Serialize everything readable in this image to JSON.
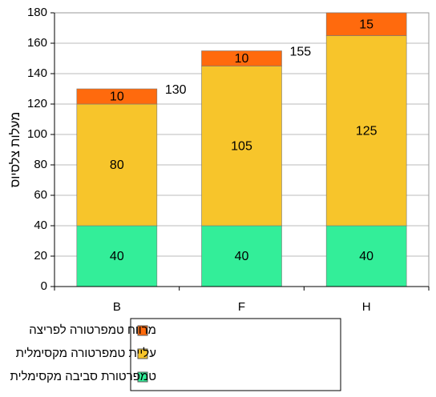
{
  "chart_data": {
    "type": "stacked-bar",
    "y_label": "מעלות צלסיוס",
    "categories": [
      "B",
      "F",
      "H"
    ],
    "series": [
      {
        "name": "טמפרטורת סביבה מקסימלית",
        "color": "#33ee99",
        "values": [
          40,
          40,
          40
        ]
      },
      {
        "name": "עליית טמפרטורה מקסימלית",
        "color": "#f7c52b",
        "values": [
          80,
          105,
          125
        ]
      },
      {
        "name": "מרווח טמפרטורה לפריצה",
        "color": "#ff6a0d",
        "values": [
          10,
          10,
          15
        ]
      }
    ],
    "totals": [
      130,
      155,
      null
    ],
    "ylim": [
      0,
      180
    ],
    "yticks": [
      0,
      20,
      40,
      60,
      80,
      100,
      120,
      140,
      160,
      180
    ],
    "grid": true
  }
}
